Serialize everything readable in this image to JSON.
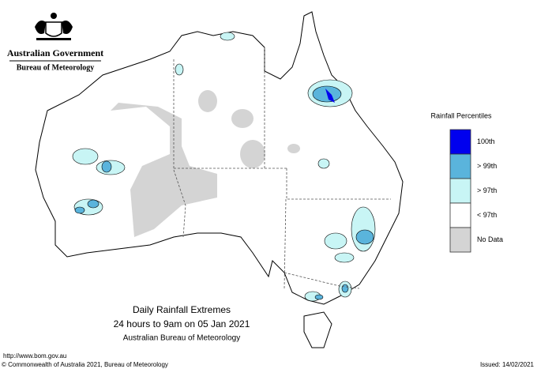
{
  "header": {
    "government": "Australian Government",
    "agency": "Bureau of Meteorology"
  },
  "legend": {
    "title": "Rainfall Percentiles",
    "items": [
      {
        "label": "100th",
        "color": "#0000ee"
      },
      {
        "label": "> 99th",
        "color": "#5ab4dc"
      },
      {
        "label": "> 97th",
        "color": "#c8f5f5"
      },
      {
        "label": "< 97th",
        "color": "#ffffff"
      },
      {
        "label": "No Data",
        "color": "#d4d4d4"
      }
    ]
  },
  "caption": {
    "title": "Daily Rainfall Extremes",
    "subtitle": "24 hours to 9am on 05 Jan 2021",
    "source": "Australian Bureau of Meteorology"
  },
  "footer": {
    "url": "http://www.bom.gov.au",
    "copyright": "© Commonwealth of Australia 2021, Bureau of Meteorology",
    "issued": "Issued: 14/02/2021"
  }
}
